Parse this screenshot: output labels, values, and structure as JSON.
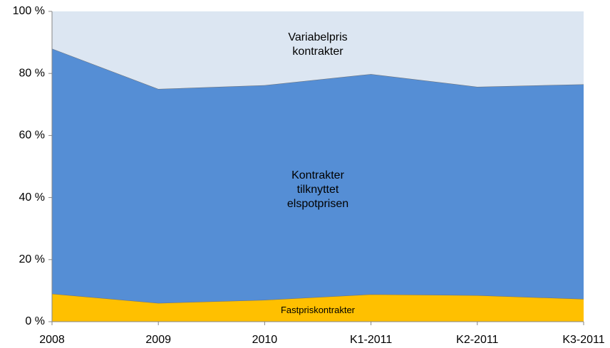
{
  "chart_data": {
    "type": "stacked_area",
    "categories": [
      "2008",
      "2009",
      "2010",
      "K1-2011",
      "K2-2011",
      "K3-2011"
    ],
    "series": [
      {
        "name": "Fastpriskontrakter",
        "color": "#ffc000",
        "values": [
          9,
          6,
          7,
          8.8,
          8.5,
          7.3
        ]
      },
      {
        "name": "Kontrakter tilknyttet elspotprisen",
        "color": "#558ed5",
        "values": [
          79,
          69,
          69.2,
          71,
          67.2,
          69.2
        ]
      },
      {
        "name": "Variabelpris kontrakter",
        "color": "#dce6f2",
        "values": [
          12,
          25,
          23.8,
          20.2,
          24.3,
          23.5
        ]
      }
    ],
    "ylim": [
      0,
      100
    ],
    "yticks": [
      {
        "value": 0,
        "label": "0 %"
      },
      {
        "value": 20,
        "label": "20 %"
      },
      {
        "value": 40,
        "label": "40 %"
      },
      {
        "value": 60,
        "label": "60 %"
      },
      {
        "value": 80,
        "label": "80 %"
      },
      {
        "value": 100,
        "label": "100 %"
      }
    ]
  }
}
